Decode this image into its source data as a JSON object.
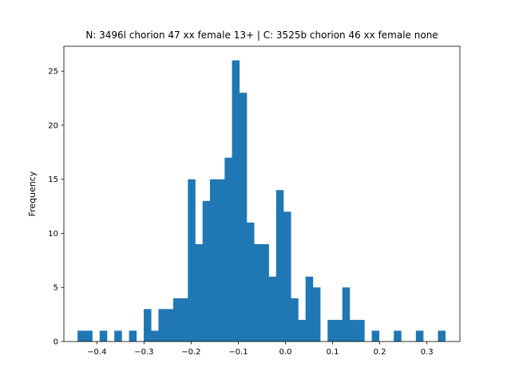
{
  "chart_data": {
    "type": "bar",
    "title": "N: 3496l chorion 47 xx female 13+ | C: 3525b chorion 46 xx female none",
    "xlabel": "",
    "ylabel": "Frequency",
    "xlim": [
      -0.47,
      0.37
    ],
    "ylim": [
      0,
      27.3
    ],
    "xticks": [
      -0.4,
      -0.3,
      -0.2,
      -0.1,
      0.0,
      0.1,
      0.2,
      0.3
    ],
    "xtick_labels": [
      "−0.4",
      "−0.3",
      "−0.2",
      "−0.1",
      "0.0",
      "0.1",
      "0.2",
      "0.3"
    ],
    "yticks": [
      0,
      5,
      10,
      15,
      20,
      25
    ],
    "ytick_labels": [
      "0",
      "5",
      "10",
      "15",
      "20",
      "25"
    ],
    "bar_color": "#1f77b4",
    "grid": false,
    "legend": false,
    "bins": [
      {
        "x0": -0.441,
        "x1": -0.4254,
        "count": 1
      },
      {
        "x0": -0.4254,
        "x1": -0.4098,
        "count": 1
      },
      {
        "x0": -0.4098,
        "x1": -0.3942,
        "count": 0
      },
      {
        "x0": -0.3942,
        "x1": -0.3786,
        "count": 1
      },
      {
        "x0": -0.3786,
        "x1": -0.363,
        "count": 0
      },
      {
        "x0": -0.363,
        "x1": -0.3474,
        "count": 1
      },
      {
        "x0": -0.3474,
        "x1": -0.3318,
        "count": 0
      },
      {
        "x0": -0.3318,
        "x1": -0.3162,
        "count": 1
      },
      {
        "x0": -0.3162,
        "x1": -0.3006,
        "count": 0
      },
      {
        "x0": -0.3006,
        "x1": -0.285,
        "count": 3
      },
      {
        "x0": -0.285,
        "x1": -0.2694,
        "count": 1
      },
      {
        "x0": -0.2694,
        "x1": -0.2538,
        "count": 3
      },
      {
        "x0": -0.2538,
        "x1": -0.2382,
        "count": 3
      },
      {
        "x0": -0.2382,
        "x1": -0.2226,
        "count": 4
      },
      {
        "x0": -0.2226,
        "x1": -0.207,
        "count": 4
      },
      {
        "x0": -0.207,
        "x1": -0.1914,
        "count": 15
      },
      {
        "x0": -0.1914,
        "x1": -0.1758,
        "count": 9
      },
      {
        "x0": -0.1758,
        "x1": -0.1602,
        "count": 13
      },
      {
        "x0": -0.1602,
        "x1": -0.1446,
        "count": 15
      },
      {
        "x0": -0.1446,
        "x1": -0.129,
        "count": 15
      },
      {
        "x0": -0.129,
        "x1": -0.1134,
        "count": 17
      },
      {
        "x0": -0.1134,
        "x1": -0.0978,
        "count": 26
      },
      {
        "x0": -0.0978,
        "x1": -0.0822,
        "count": 23
      },
      {
        "x0": -0.0822,
        "x1": -0.0666,
        "count": 11
      },
      {
        "x0": -0.0666,
        "x1": -0.051,
        "count": 9
      },
      {
        "x0": -0.051,
        "x1": -0.0354,
        "count": 9
      },
      {
        "x0": -0.0354,
        "x1": -0.0198,
        "count": 6
      },
      {
        "x0": -0.0198,
        "x1": -0.0042,
        "count": 14
      },
      {
        "x0": -0.0042,
        "x1": 0.0114,
        "count": 12
      },
      {
        "x0": 0.0114,
        "x1": 0.027,
        "count": 4
      },
      {
        "x0": 0.027,
        "x1": 0.0426,
        "count": 2
      },
      {
        "x0": 0.0426,
        "x1": 0.0582,
        "count": 6
      },
      {
        "x0": 0.0582,
        "x1": 0.0738,
        "count": 5
      },
      {
        "x0": 0.0738,
        "x1": 0.0894,
        "count": 0
      },
      {
        "x0": 0.0894,
        "x1": 0.105,
        "count": 2
      },
      {
        "x0": 0.105,
        "x1": 0.1206,
        "count": 2
      },
      {
        "x0": 0.1206,
        "x1": 0.1362,
        "count": 5
      },
      {
        "x0": 0.1362,
        "x1": 0.1518,
        "count": 2
      },
      {
        "x0": 0.1518,
        "x1": 0.1674,
        "count": 2
      },
      {
        "x0": 0.1674,
        "x1": 0.183,
        "count": 0
      },
      {
        "x0": 0.183,
        "x1": 0.1986,
        "count": 1
      },
      {
        "x0": 0.1986,
        "x1": 0.2142,
        "count": 0
      },
      {
        "x0": 0.2142,
        "x1": 0.2298,
        "count": 0
      },
      {
        "x0": 0.2298,
        "x1": 0.2454,
        "count": 1
      },
      {
        "x0": 0.2454,
        "x1": 0.261,
        "count": 0
      },
      {
        "x0": 0.261,
        "x1": 0.2766,
        "count": 0
      },
      {
        "x0": 0.2766,
        "x1": 0.2922,
        "count": 1
      },
      {
        "x0": 0.2922,
        "x1": 0.3078,
        "count": 0
      },
      {
        "x0": 0.3078,
        "x1": 0.3234,
        "count": 0
      },
      {
        "x0": 0.3234,
        "x1": 0.339,
        "count": 1
      }
    ]
  }
}
